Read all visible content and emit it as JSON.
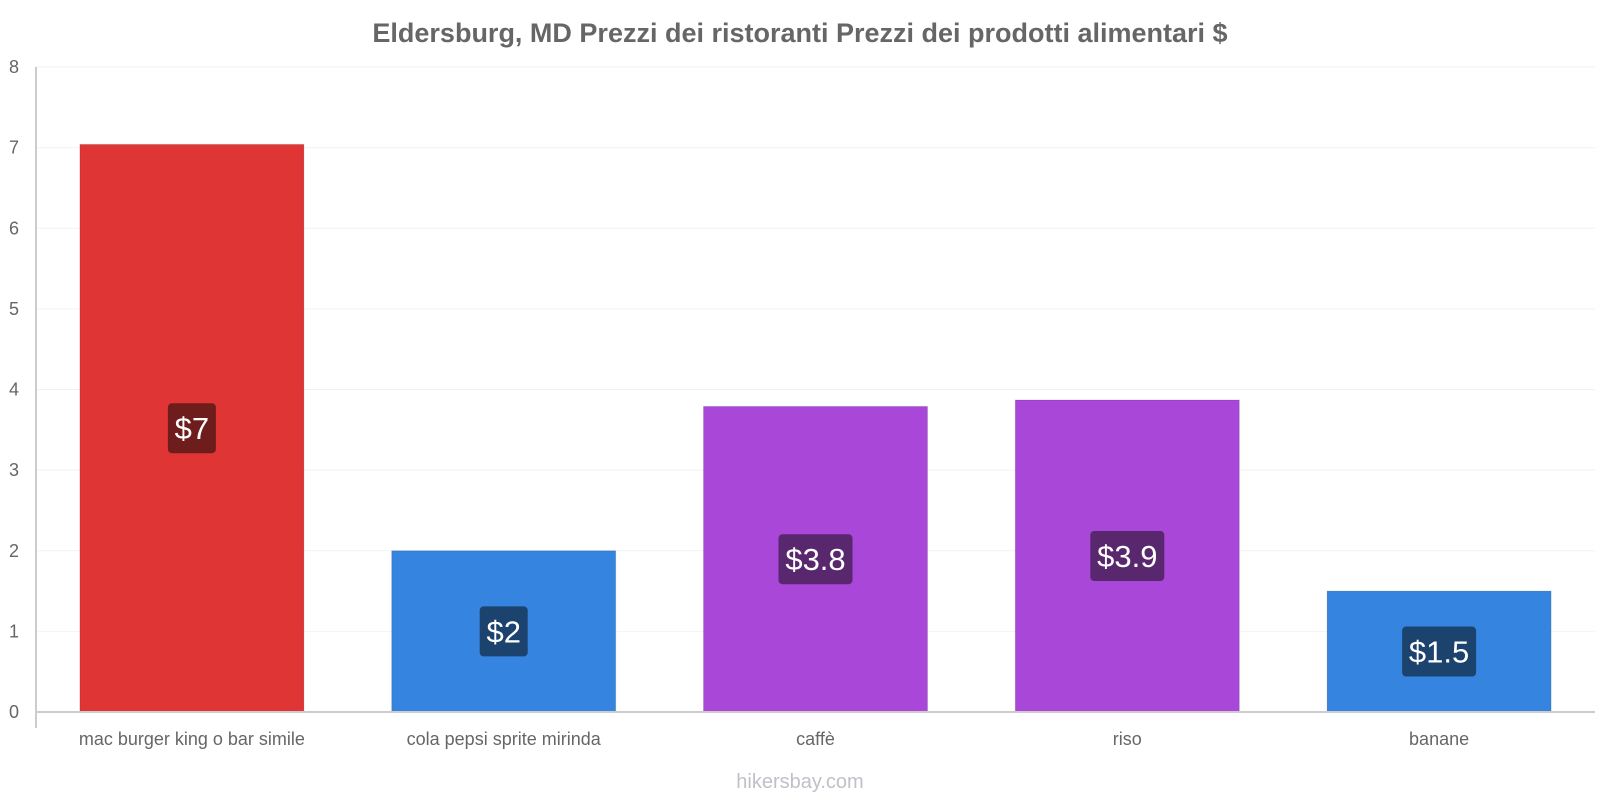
{
  "chart_data": {
    "type": "bar",
    "title": "Eldersburg, MD Prezzi dei ristoranti Prezzi dei prodotti alimentari $",
    "categories": [
      "mac burger king o bar simile",
      "cola pepsi sprite mirinda",
      "caffè",
      "riso",
      "banane"
    ],
    "values": [
      7.04,
      2.0,
      3.79,
      3.87,
      1.5
    ],
    "value_labels": [
      "$7",
      "$2",
      "$3.8",
      "$3.9",
      "$1.5"
    ],
    "bar_colors": [
      "#e03535",
      "#3584e0",
      "#a847d8",
      "#a847d8",
      "#3584e0"
    ],
    "label_bg_colors": [
      "#6e1c1c",
      "#1c436e",
      "#58276e",
      "#58276e",
      "#1c436e"
    ],
    "ylim": [
      0,
      8
    ],
    "yticks": [
      "0",
      "1",
      "2",
      "3",
      "4",
      "5",
      "6",
      "7",
      "8"
    ],
    "xlabel": "",
    "ylabel": "",
    "grid": true
  },
  "footer": {
    "source": "hikersbay.com"
  }
}
